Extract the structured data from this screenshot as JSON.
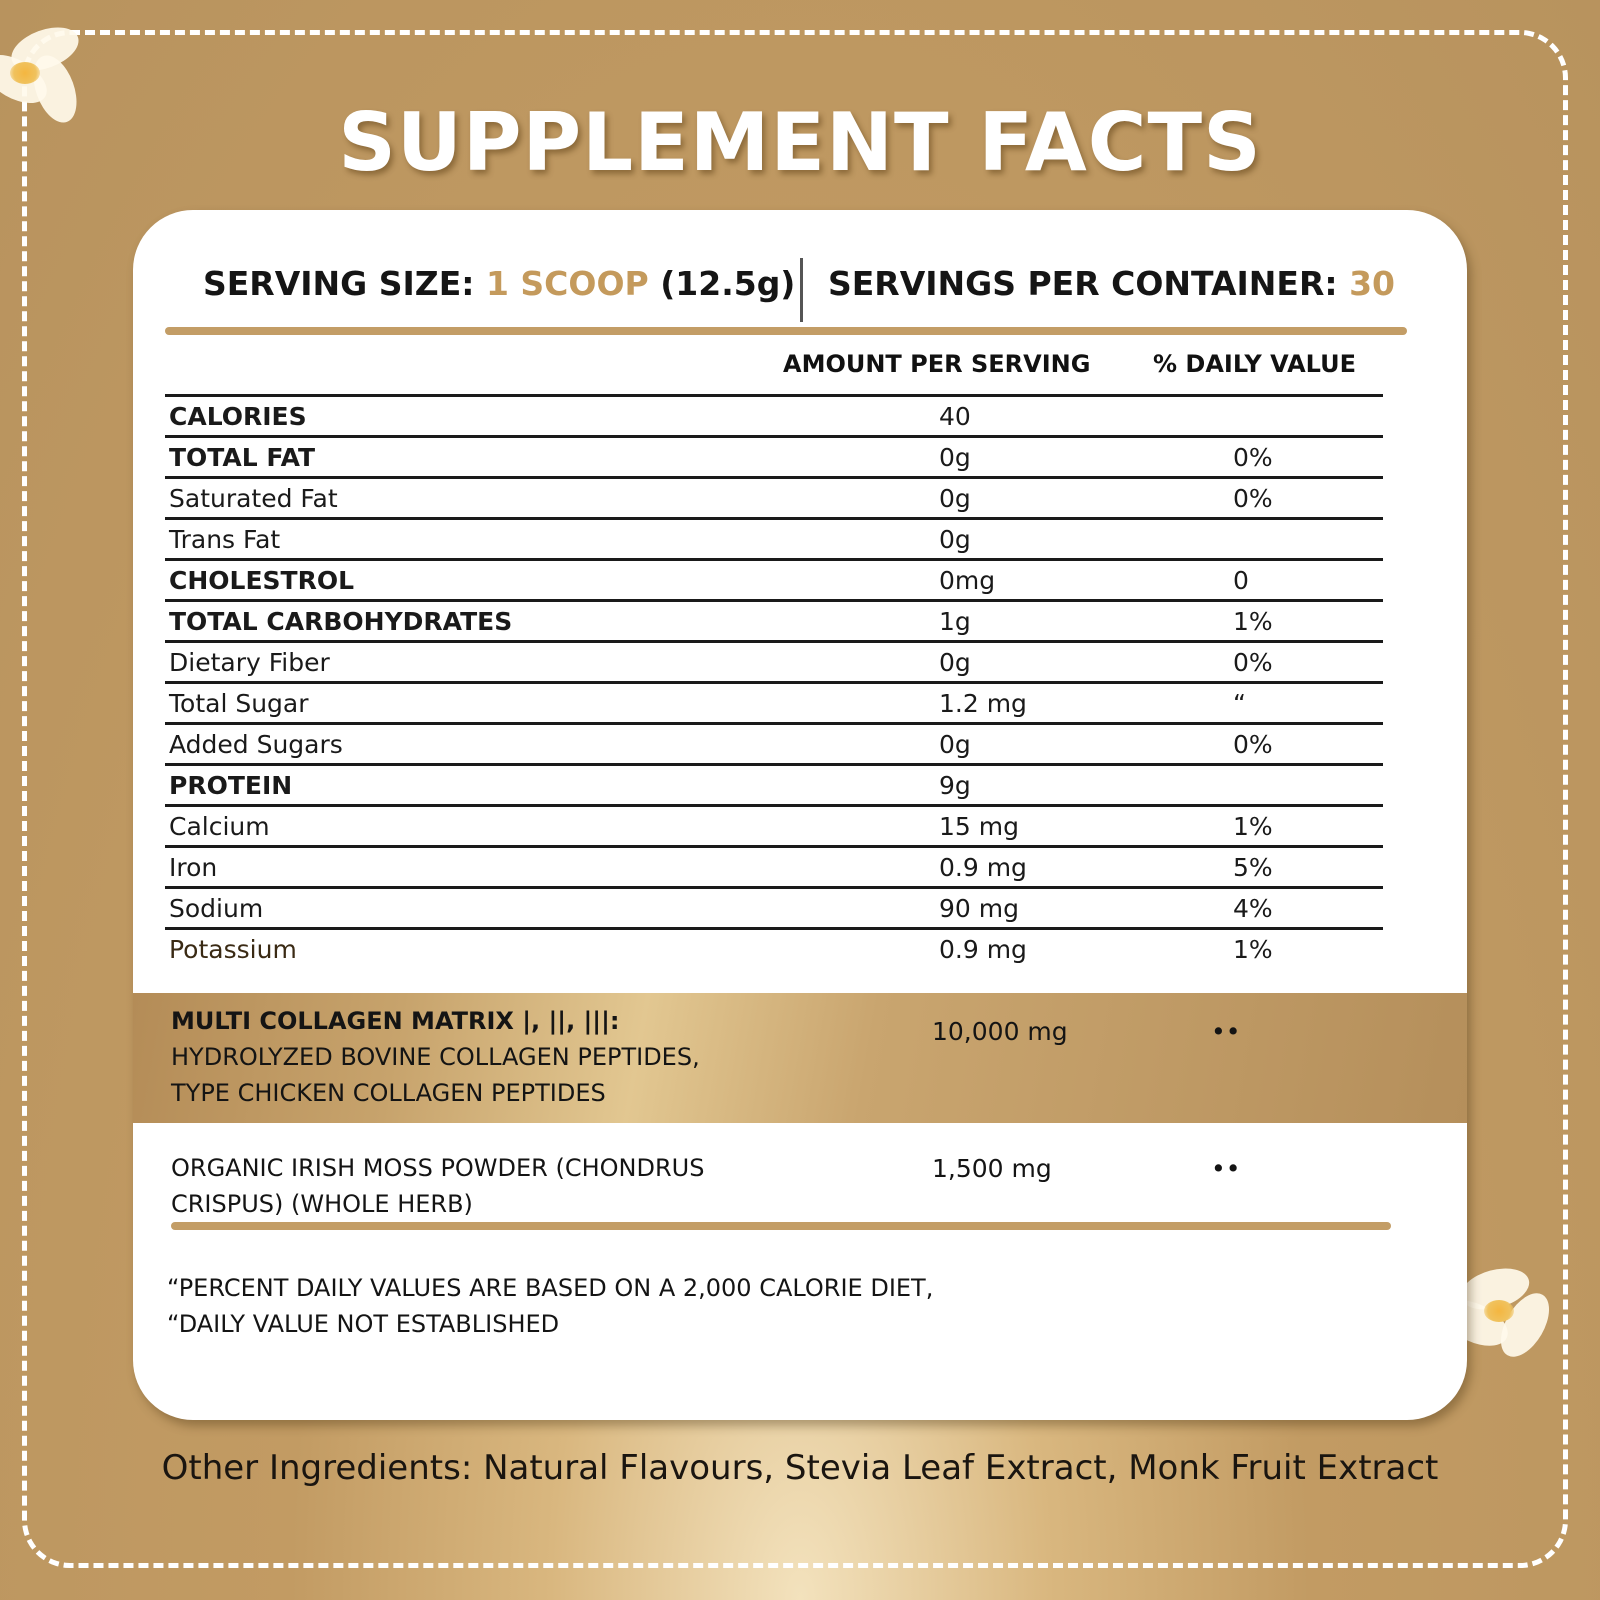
{
  "title": "SUPPLEMENT FACTS",
  "serving": {
    "size_label": "SERVING SIZE:",
    "size_value": "1 SCOOP",
    "size_weight": "(12.5g)",
    "per_container_label": "SERVINGS PER CONTAINER:",
    "per_container_value": "30"
  },
  "table": {
    "col_amount": "AMOUNT PER SERVING",
    "col_dv": "% DAILY VALUE",
    "rows": [
      {
        "label": "CALORIES",
        "amount": "40",
        "dv": ""
      },
      {
        "label": "TOTAL FAT",
        "amount": "0g",
        "dv": "0%"
      },
      {
        "label": "Saturated Fat",
        "amount": "0g",
        "dv": "0%"
      },
      {
        "label": "Trans Fat",
        "amount": "0g",
        "dv": ""
      },
      {
        "label": "CHOLESTROL",
        "amount": "0mg",
        "dv": "0"
      },
      {
        "label": "TOTAL CARBOHYDRATES",
        "amount": "1g",
        "dv": "1%"
      },
      {
        "label": "Dietary Fiber",
        "amount": "0g",
        "dv": "0%"
      },
      {
        "label": "Total Sugar",
        "amount": "1.2 mg",
        "dv": "“"
      },
      {
        "label": "Added Sugars",
        "amount": "0g",
        "dv": "0%"
      },
      {
        "label": "PROTEIN",
        "amount": "9g",
        "dv": ""
      },
      {
        "label": "Calcium",
        "amount": "15 mg",
        "dv": "1%"
      },
      {
        "label": "Iron",
        "amount": "0.9 mg",
        "dv": "5%"
      },
      {
        "label": "Sodium",
        "amount": "90 mg",
        "dv": "4%"
      },
      {
        "label": "Potassium",
        "amount": "0.9 mg",
        "dv": "1%"
      }
    ]
  },
  "collagen": {
    "line1": "MULTI COLLAGEN MATRIX |, ||, |||:",
    "line2": "HYDROLYZED BOVINE COLLAGEN PEPTIDES,",
    "line3": "TYPE CHICKEN COLLAGEN PEPTIDES",
    "amount": "10,000 mg",
    "dv": "••"
  },
  "moss": {
    "line1": "ORGANIC IRISH MOSS POWDER (CHONDRUS",
    "line2": "CRISPUS) (WHOLE HERB)",
    "amount": "1,500 mg",
    "dv": "••"
  },
  "notes": {
    "line1": "“PERCENT DAILY VALUES ARE BASED ON A 2,000 CALORIE DIET,",
    "line2": "“DAILY VALUE NOT ESTABLISHED"
  },
  "other_ingredients": "Other Ingredients: Natural Flavours, Stevia Leaf Extract, Monk Fruit Extract",
  "colors": {
    "background": "#b8935e",
    "accent_gold": "#c49a5c",
    "card": "#ffffff",
    "text": "#141414"
  }
}
